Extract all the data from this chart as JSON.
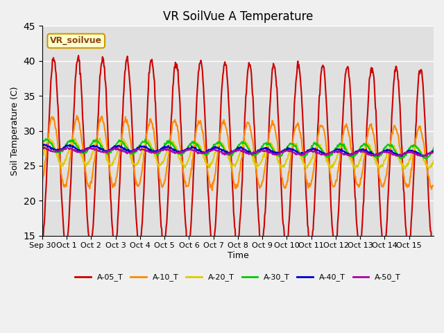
{
  "title": "VR SoilVue A Temperature",
  "ylabel": "Soil Temperature (C)",
  "xlabel": "Time",
  "legend_label": "VR_soilvue",
  "ylim": [
    15,
    45
  ],
  "yticks": [
    15,
    20,
    25,
    30,
    35,
    40,
    45
  ],
  "xtick_labels": [
    "Sep 30",
    "Oct 1",
    "Oct 2",
    "Oct 3",
    "Oct 4",
    "Oct 5",
    "Oct 6",
    "Oct 7",
    "Oct 8",
    "Oct 9",
    "Oct 10",
    "Oct 11",
    "Oct 12",
    "Oct 13",
    "Oct 14",
    "Oct 15"
  ],
  "series_names": [
    "A-05_T",
    "A-10_T",
    "A-20_T",
    "A-30_T",
    "A-40_T",
    "A-50_T"
  ],
  "series_colors": [
    "#cc0000",
    "#ff8800",
    "#ddcc00",
    "#00cc00",
    "#0000cc",
    "#aa00aa"
  ],
  "series_lw": [
    1.5,
    1.5,
    1.5,
    1.5,
    1.5,
    1.5
  ],
  "bg_color": "#e0e0e0",
  "grid_color": "#ffffff",
  "fig_bg_color": "#f0f0f0",
  "title_fontsize": 12,
  "n_days": 16
}
